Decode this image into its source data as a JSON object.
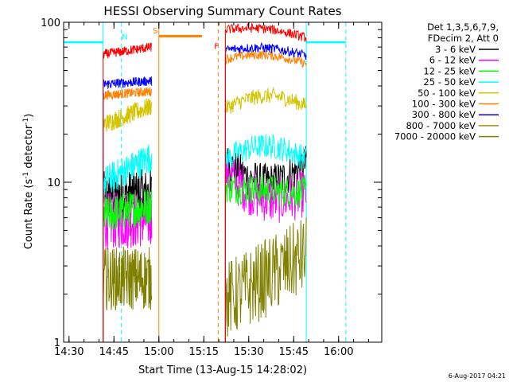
{
  "chart_data": {
    "type": "line",
    "title": "HESSI Observing Summary Count Rates",
    "xlabel": "Start Time (13-Aug-15 14:28:02)",
    "ylabel_main": "Count Rate (s",
    "ylabel_sup1": "-1",
    "ylabel_mid": " detector",
    "ylabel_sup2": "-1",
    "ylabel_end": ")",
    "y_scale": "log",
    "xlim": [
      14.47,
      16.24
    ],
    "ylim": [
      1,
      100
    ],
    "x_ticks": [
      {
        "value": 14.5,
        "label": "14:30"
      },
      {
        "value": 14.75,
        "label": "14:45"
      },
      {
        "value": 15.0,
        "label": "15:00"
      },
      {
        "value": 15.25,
        "label": "15:15"
      },
      {
        "value": 15.5,
        "label": "15:30"
      },
      {
        "value": 15.75,
        "label": "15:45"
      },
      {
        "value": 16.0,
        "label": "16:00"
      }
    ],
    "y_ticks": [
      {
        "value": 1,
        "label": "1"
      },
      {
        "value": 10,
        "label": "10"
      },
      {
        "value": 100,
        "label": "100"
      }
    ],
    "legend_header": [
      "Det 1,3,5,6,7,9,",
      "FDecim 2, Att 0"
    ],
    "series": [
      {
        "name": "3 - 6 keV",
        "color": "#000000",
        "segments": [
          {
            "start": 14.69,
            "end": 14.96,
            "v0": 8.3,
            "v1": 8.6,
            "noise": 0.15
          },
          {
            "start": 15.37,
            "end": 15.82,
            "v0": 13.5,
            "v1": 13.0,
            "noise": 0.12,
            "bump": -0.12
          }
        ]
      },
      {
        "name": "6 - 12 keV",
        "color": "#ff00ff",
        "segments": [
          {
            "start": 14.69,
            "end": 14.96,
            "v0": 5.7,
            "v1": 5.9,
            "noise": 0.18
          },
          {
            "start": 15.37,
            "end": 15.82,
            "v0": 11.5,
            "v1": 8.6,
            "noise": 0.15,
            "bump": -0.1
          }
        ]
      },
      {
        "name": "12 - 25 keV",
        "color": "#00ff00",
        "segments": [
          {
            "start": 14.69,
            "end": 14.96,
            "v0": 6.2,
            "v1": 7.2,
            "noise": 0.12
          },
          {
            "start": 15.37,
            "end": 15.82,
            "v0": 9.3,
            "v1": 8.6,
            "noise": 0.1
          }
        ]
      },
      {
        "name": "25 - 50 keV",
        "color": "#00ffff",
        "segments": [
          {
            "start": 14.69,
            "end": 14.96,
            "v0": 10.0,
            "v1": 14.5,
            "noise": 0.1
          },
          {
            "start": 15.37,
            "end": 15.82,
            "v0": 14.0,
            "v1": 14.0,
            "noise": 0.08,
            "bump": 0.08
          }
        ]
      },
      {
        "name": "50 - 100 keV",
        "color": "#d4c400",
        "segments": [
          {
            "start": 14.69,
            "end": 14.96,
            "v0": 23,
            "v1": 30,
            "noise": 0.06
          },
          {
            "start": 15.37,
            "end": 15.82,
            "v0": 29,
            "v1": 30,
            "noise": 0.05,
            "bump": 0.07
          }
        ]
      },
      {
        "name": "100 - 300 keV",
        "color": "#ff7f00",
        "segments": [
          {
            "start": 14.69,
            "end": 14.96,
            "v0": 35,
            "v1": 37,
            "noise": 0.03
          },
          {
            "start": 15.37,
            "end": 15.82,
            "v0": 59,
            "v1": 55,
            "noise": 0.03,
            "bump": 0.04
          }
        ]
      },
      {
        "name": "300 - 800 keV",
        "color": "#0000ff",
        "segments": [
          {
            "start": 14.69,
            "end": 14.96,
            "v0": 41,
            "v1": 43,
            "noise": 0.03
          },
          {
            "start": 15.37,
            "end": 15.82,
            "v0": 67,
            "v1": 62,
            "noise": 0.03,
            "bump": 0.03
          }
        ]
      },
      {
        "name": "800 - 7000 keV",
        "color": "#b8860b",
        "segments": []
      },
      {
        "name": "7000 - 20000 keV",
        "color": "#808000",
        "segments": [
          {
            "start": 14.69,
            "end": 14.96,
            "v0": 2.5,
            "v1": 2.5,
            "noise": 0.2
          },
          {
            "start": 15.37,
            "end": 15.82,
            "v0": 1.8,
            "v1": 3.5,
            "noise": 0.25
          }
        ]
      },
      {
        "name": "",
        "color": "#ff0000",
        "segments": [
          {
            "start": 14.69,
            "end": 14.96,
            "v0": 63,
            "v1": 70,
            "noise": 0.03
          },
          {
            "start": 15.37,
            "end": 15.82,
            "v0": 90,
            "v1": 80,
            "noise": 0.03,
            "bump": 0.03
          }
        ]
      }
    ],
    "attenuator_bar": {
      "color": "#ff7f00",
      "start": 15.0,
      "end": 15.24,
      "value": 82
    },
    "cyan_baseline": {
      "color": "#00ffff",
      "segments": [
        [
          14.47,
          14.69,
          75
        ],
        [
          15.82,
          16.04,
          75
        ]
      ]
    },
    "vertical_markers": [
      {
        "x": 14.69,
        "color": "#00ffff",
        "style": "solid"
      },
      {
        "x": 14.79,
        "color": "#00ffff",
        "style": "dashed"
      },
      {
        "x": 15.0,
        "color": "#ff7f00",
        "style": "solid"
      },
      {
        "x": 15.33,
        "color": "#ff7f00",
        "style": "dashed"
      },
      {
        "x": 15.37,
        "color": "#ff7f00",
        "style": "solid"
      },
      {
        "x": 15.82,
        "color": "#00ffff",
        "style": "solid"
      },
      {
        "x": 16.04,
        "color": "#00ffff",
        "style": "dashed"
      }
    ],
    "annotations": [
      {
        "text": "N",
        "x": 14.81,
        "value": 78,
        "color": "#00ffff"
      },
      {
        "text": "S",
        "x": 14.98,
        "value": 85,
        "color": "#ff7f00"
      },
      {
        "text": "F",
        "x": 15.32,
        "value": 68,
        "color": "#ff0000"
      }
    ]
  },
  "timestamp": "6-Aug-2017 04:21"
}
